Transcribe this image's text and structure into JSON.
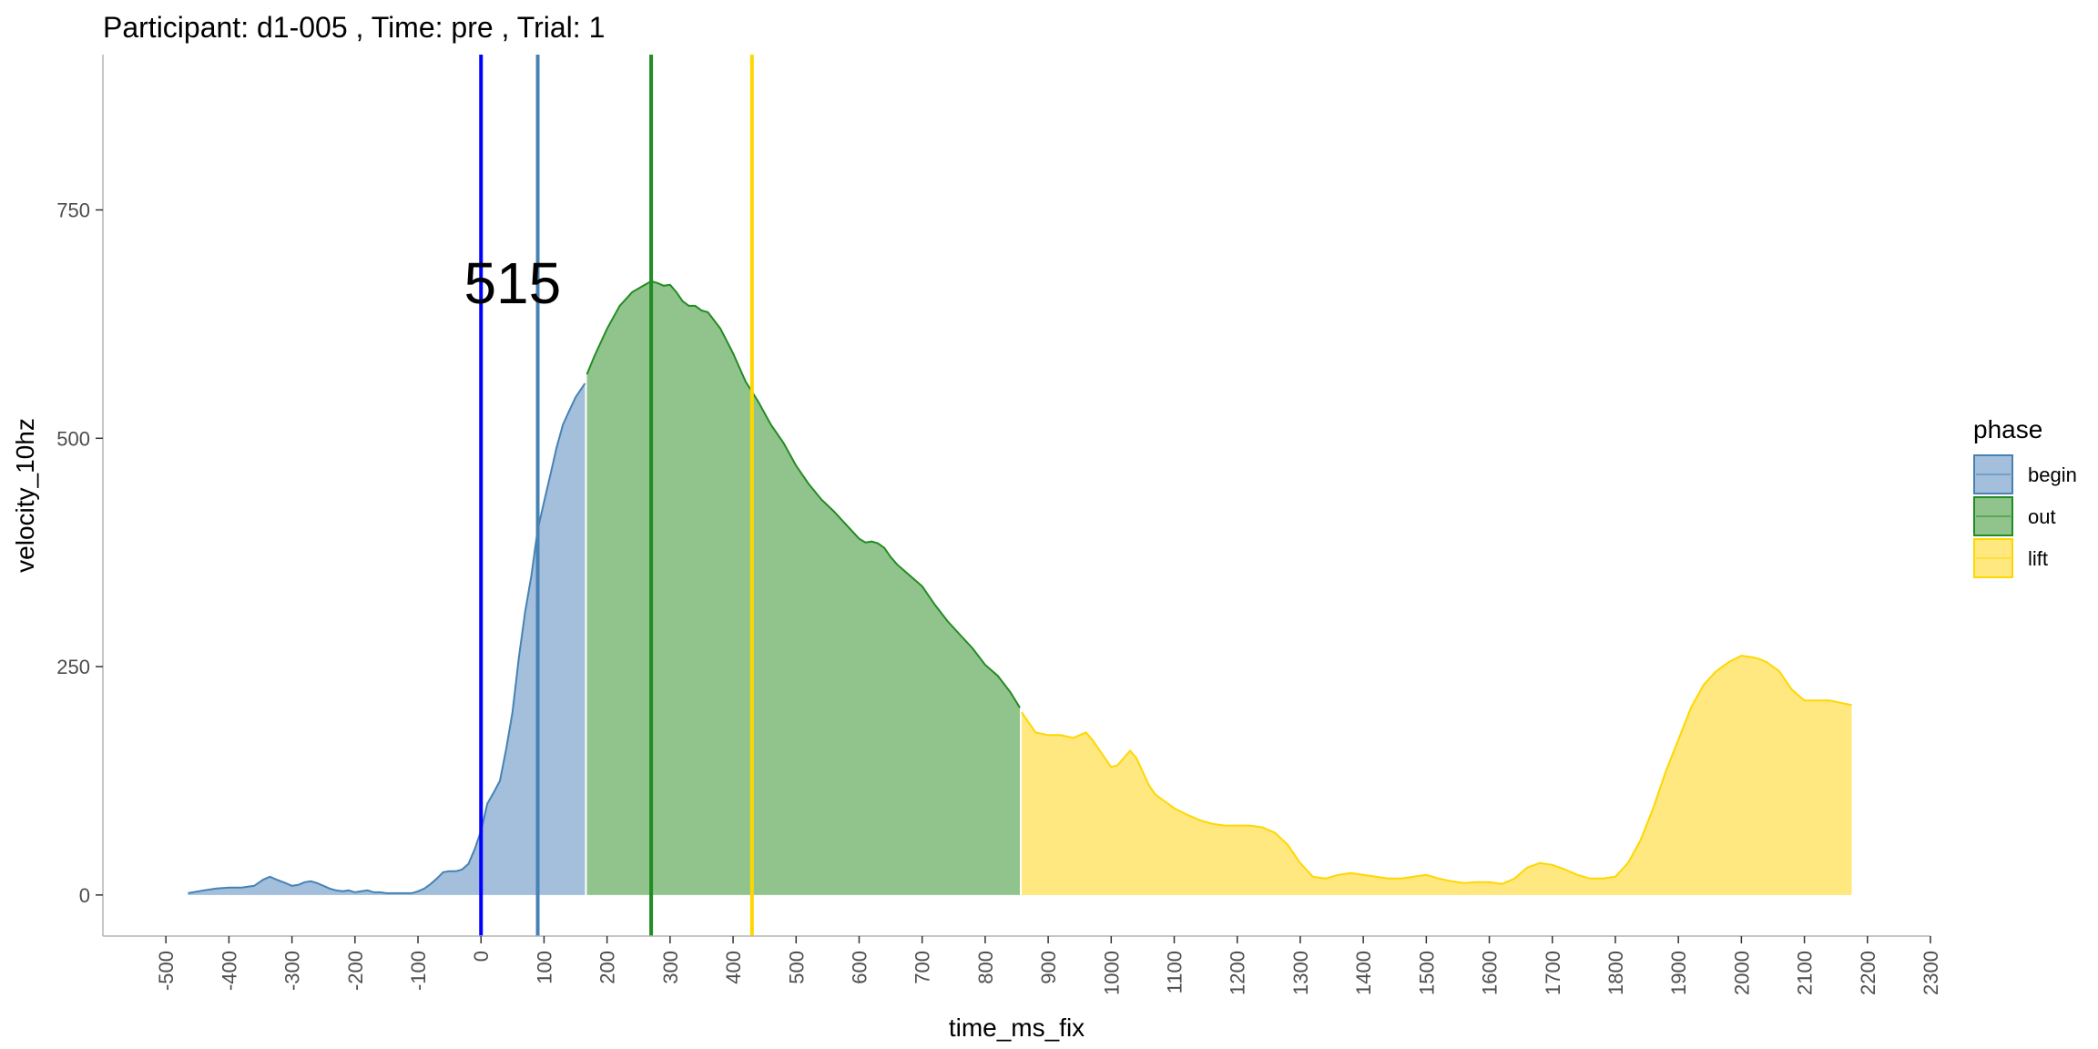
{
  "chart_data": {
    "type": "area",
    "title": "Participant:  d1-005 , Time: pre , Trial:  1",
    "xlabel": "time_ms_fix",
    "ylabel": "velocity_10hz",
    "xlim": [
      -600,
      2300
    ],
    "ylim": [
      -45,
      920
    ],
    "x_ticks": [
      -500,
      -400,
      -300,
      -200,
      -100,
      0,
      100,
      200,
      300,
      400,
      500,
      600,
      700,
      800,
      900,
      1000,
      1100,
      1200,
      1300,
      1400,
      1500,
      1600,
      1700,
      1800,
      1900,
      2000,
      2100,
      2200,
      2300
    ],
    "x_tick_labels": [
      "-500",
      "-400",
      "-300",
      "-200",
      "-100",
      "0",
      "100",
      "200",
      "300",
      "400",
      "500",
      "600",
      "700",
      "800",
      "900",
      "1000",
      "1100",
      "1200",
      "1300",
      "1400",
      "1500",
      "1600",
      "1700",
      "1800",
      "1900",
      "2000",
      "2100",
      "2200",
      "2300"
    ],
    "y_ticks": [
      0,
      250,
      500,
      750
    ],
    "y_tick_labels": [
      "0",
      "250",
      "500",
      "750"
    ],
    "grid": false,
    "legend": {
      "title": "phase",
      "position": "right",
      "entries": [
        {
          "label": "begin",
          "fill": "#a3bfdc",
          "stroke": "#4682b4"
        },
        {
          "label": "out",
          "fill": "#91c48c",
          "stroke": "#228b22"
        },
        {
          "label": "lift",
          "fill": "#fee87f",
          "stroke": "#ffd700"
        }
      ]
    },
    "series": [
      {
        "name": "begin",
        "fill": "#a3bfdc",
        "stroke": "#4682b4",
        "x": [
          -465,
          -440,
          -420,
          -400,
          -380,
          -360,
          -345,
          -335,
          -325,
          -310,
          -300,
          -290,
          -280,
          -270,
          -260,
          -250,
          -240,
          -230,
          -220,
          -210,
          -200,
          -190,
          -180,
          -170,
          -160,
          -150,
          -140,
          -130,
          -120,
          -110,
          -100,
          -90,
          -80,
          -70,
          -60,
          -50,
          -40,
          -30,
          -20,
          -10,
          0,
          10,
          20,
          30,
          40,
          50,
          60,
          70,
          80,
          90,
          100,
          110,
          120,
          130,
          140,
          150,
          160,
          165
        ],
        "y": [
          2,
          5,
          7,
          8,
          8,
          10,
          17,
          20,
          17,
          13,
          10,
          11,
          14,
          15,
          13,
          10,
          7,
          5,
          4,
          5,
          3,
          4,
          5,
          3,
          3,
          2,
          2,
          2,
          2,
          2,
          4,
          7,
          12,
          18,
          25,
          26,
          26,
          28,
          34,
          50,
          70,
          100,
          112,
          125,
          160,
          200,
          260,
          310,
          350,
          400,
          430,
          460,
          490,
          515,
          530,
          545,
          555,
          560
        ]
      },
      {
        "name": "out",
        "fill": "#91c48c",
        "stroke": "#228b22",
        "x": [
          168,
          180,
          200,
          220,
          240,
          260,
          270,
          280,
          290,
          300,
          310,
          320,
          330,
          340,
          350,
          360,
          380,
          400,
          420,
          440,
          460,
          480,
          500,
          520,
          540,
          560,
          580,
          600,
          610,
          620,
          630,
          640,
          650,
          660,
          680,
          700,
          720,
          740,
          760,
          780,
          800,
          820,
          840,
          855
        ],
        "y": [
          570,
          590,
          620,
          645,
          660,
          668,
          672,
          670,
          667,
          668,
          660,
          650,
          645,
          645,
          640,
          638,
          620,
          593,
          562,
          540,
          515,
          495,
          470,
          450,
          433,
          420,
          405,
          390,
          386,
          387,
          385,
          380,
          370,
          362,
          350,
          338,
          318,
          300,
          285,
          270,
          252,
          240,
          222,
          205
        ]
      },
      {
        "name": "lift",
        "fill": "#fee87f",
        "stroke": "#ffd700",
        "x": [
          858,
          870,
          880,
          900,
          920,
          940,
          950,
          960,
          970,
          980,
          990,
          1000,
          1010,
          1020,
          1030,
          1040,
          1050,
          1060,
          1070,
          1080,
          1090,
          1100,
          1120,
          1140,
          1160,
          1180,
          1200,
          1220,
          1240,
          1260,
          1280,
          1300,
          1320,
          1340,
          1360,
          1380,
          1400,
          1420,
          1440,
          1460,
          1480,
          1500,
          1520,
          1540,
          1560,
          1580,
          1600,
          1620,
          1640,
          1660,
          1680,
          1700,
          1720,
          1740,
          1760,
          1780,
          1800,
          1820,
          1840,
          1860,
          1880,
          1900,
          1920,
          1940,
          1960,
          1980,
          2000,
          2020,
          2030,
          2040,
          2060,
          2080,
          2100,
          2120,
          2140,
          2160,
          2175
        ],
        "y": [
          200,
          188,
          178,
          175,
          175,
          172,
          175,
          178,
          170,
          160,
          150,
          140,
          142,
          150,
          158,
          150,
          135,
          120,
          110,
          105,
          100,
          95,
          88,
          82,
          78,
          76,
          76,
          76,
          74,
          68,
          55,
          35,
          20,
          18,
          22,
          24,
          22,
          20,
          18,
          18,
          20,
          22,
          18,
          15,
          13,
          14,
          14,
          12,
          18,
          30,
          35,
          33,
          28,
          22,
          18,
          18,
          20,
          35,
          60,
          95,
          135,
          170,
          205,
          230,
          245,
          255,
          262,
          260,
          258,
          255,
          245,
          225,
          213,
          213,
          213,
          210,
          208
        ]
      }
    ],
    "vlines": [
      {
        "x": 0,
        "color": "#0000ff"
      },
      {
        "x": 90,
        "color": "#4682b4"
      },
      {
        "x": 270,
        "color": "#228b22"
      },
      {
        "x": 430,
        "color": "#ffd700"
      }
    ],
    "annotation": {
      "text": "515",
      "x": 50,
      "y": 670
    }
  }
}
